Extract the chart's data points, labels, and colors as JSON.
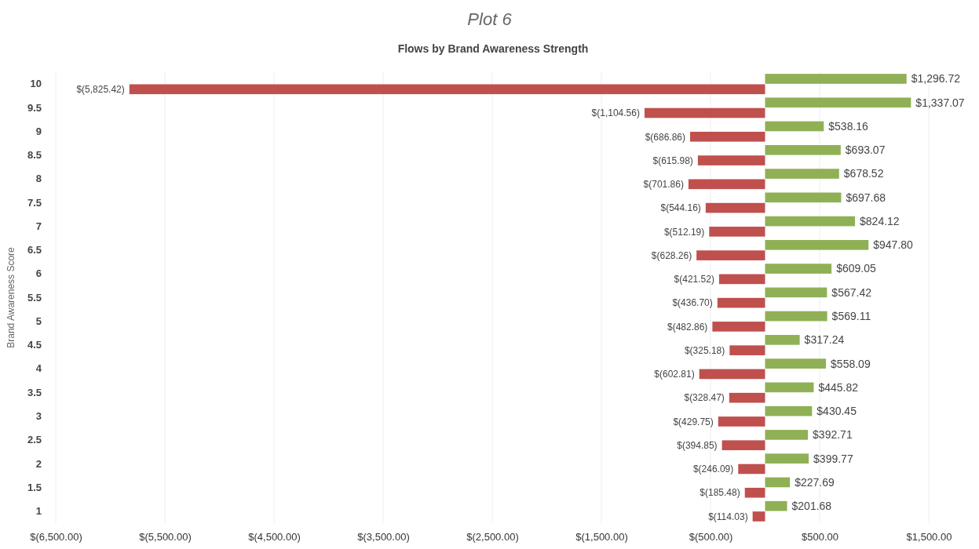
{
  "chart_data": {
    "type": "bar",
    "orientation": "horizontal",
    "title": "Plot 6",
    "subtitle": "Flows by Brand Awareness Strength",
    "ylabel": "Brand Awareness Score",
    "categories": [
      "10",
      "9.5",
      "9",
      "8.5",
      "8",
      "7.5",
      "7",
      "6.5",
      "6",
      "5.5",
      "5",
      "4.5",
      "4",
      "3.5",
      "3",
      "2.5",
      "2",
      "1.5",
      "1"
    ],
    "series": [
      {
        "color": "#8fb055",
        "values": [
          1296.72,
          1337.07,
          538.16,
          693.07,
          678.52,
          697.68,
          824.12,
          947.8,
          609.05,
          567.42,
          569.11,
          317.24,
          558.09,
          445.82,
          430.45,
          392.71,
          399.77,
          227.69,
          201.68
        ],
        "value_labels": [
          "$1,296.72",
          "$1,337.07",
          "$538.16",
          "$693.07",
          "$678.52",
          "$697.68",
          "$824.12",
          "$947.80",
          "$609.05",
          "$567.42",
          "$569.11",
          "$317.24",
          "$558.09",
          "$445.82",
          "$430.45",
          "$392.71",
          "$399.77",
          "$227.69",
          "$201.68"
        ]
      },
      {
        "color": "#c0504d",
        "values": [
          -5825.42,
          -1104.56,
          -686.86,
          -615.98,
          -701.86,
          -544.16,
          -512.19,
          -628.26,
          -421.52,
          -436.7,
          -482.86,
          -325.18,
          -602.81,
          -328.47,
          -429.75,
          -394.85,
          -246.09,
          -185.48,
          -114.03
        ],
        "value_labels": [
          "$(5,825.42)",
          "$(1,104.56)",
          "$(686.86)",
          "$(615.98)",
          "$(701.86)",
          "$(544.16)",
          "$(512.19)",
          "$(628.26)",
          "$(421.52)",
          "$(436.70)",
          "$(482.86)",
          "$(325.18)",
          "$(602.81)",
          "$(328.47)",
          "$(429.75)",
          "$(394.85)",
          "$(246.09)",
          "$(185.48)",
          "$(114.03)"
        ]
      }
    ],
    "xlim": [
      -6500,
      1500
    ],
    "xticks": [
      {
        "value": -6500,
        "label": "$(6,500.00)"
      },
      {
        "value": -5500,
        "label": "$(5,500.00)"
      },
      {
        "value": -4500,
        "label": "$(4,500.00)"
      },
      {
        "value": -3500,
        "label": "$(3,500.00)"
      },
      {
        "value": -2500,
        "label": "$(2,500.00)"
      },
      {
        "value": -1500,
        "label": "$(1,500.00)"
      },
      {
        "value": -500,
        "label": "$(500.00)"
      },
      {
        "value": 500,
        "label": "$500.00"
      },
      {
        "value": 1500,
        "label": "$1,500.00"
      }
    ],
    "grid": "x"
  }
}
